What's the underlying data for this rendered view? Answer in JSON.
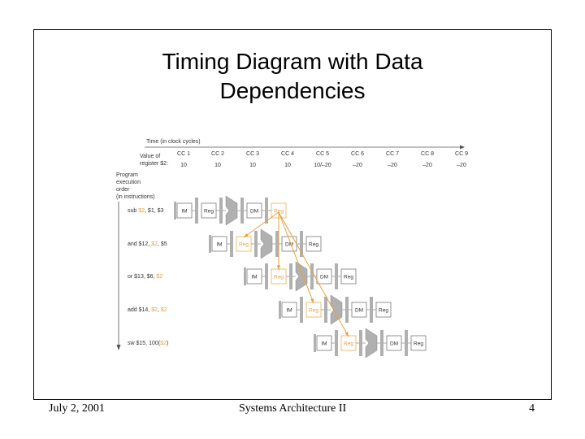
{
  "slide": {
    "title_line1": "Timing Diagram with Data",
    "title_line2": "Dependencies"
  },
  "footer": {
    "date": "July 2, 2001",
    "course": "Systems Architecture II",
    "page": "4"
  },
  "diagram": {
    "time_label": "Time (in clock cycles)",
    "value_label_1": "Value of",
    "value_label_2": "register $2:",
    "cycles": [
      "CC 1",
      "CC 2",
      "CC 3",
      "CC 4",
      "CC 5",
      "CC 6",
      "CC 7",
      "CC 8",
      "CC 9"
    ],
    "values": [
      "10",
      "10",
      "10",
      "10",
      "10/–20",
      "–20",
      "–20",
      "–20",
      "–20"
    ],
    "order_label": [
      "Program",
      "execution",
      "order",
      "(in instructions)"
    ],
    "instructions": [
      {
        "text": [
          {
            "t": "sub ",
            "hl": false
          },
          {
            "t": "$2",
            "hl": true
          },
          {
            "t": ", $1, $3",
            "hl": false
          }
        ]
      },
      {
        "text": [
          {
            "t": "and $12, ",
            "hl": false
          },
          {
            "t": "$2",
            "hl": true
          },
          {
            "t": ", $5",
            "hl": false
          }
        ]
      },
      {
        "text": [
          {
            "t": "or $13, $6, ",
            "hl": false
          },
          {
            "t": "$2",
            "hl": true
          }
        ]
      },
      {
        "text": [
          {
            "t": "add $14, ",
            "hl": false
          },
          {
            "t": "$2",
            "hl": true
          },
          {
            "t": ", ",
            "hl": false
          },
          {
            "t": "$2",
            "hl": true
          }
        ]
      },
      {
        "text": [
          {
            "t": "sw $15, 100(",
            "hl": false
          },
          {
            "t": "$2",
            "hl": true
          },
          {
            "t": ")",
            "hl": false
          }
        ]
      }
    ],
    "stages": {
      "im": "IM",
      "reg": "Reg",
      "dm": "DM"
    },
    "colors": {
      "highlight": "#e8a040",
      "unit": "#b0b0b0",
      "text": "#333333"
    }
  }
}
